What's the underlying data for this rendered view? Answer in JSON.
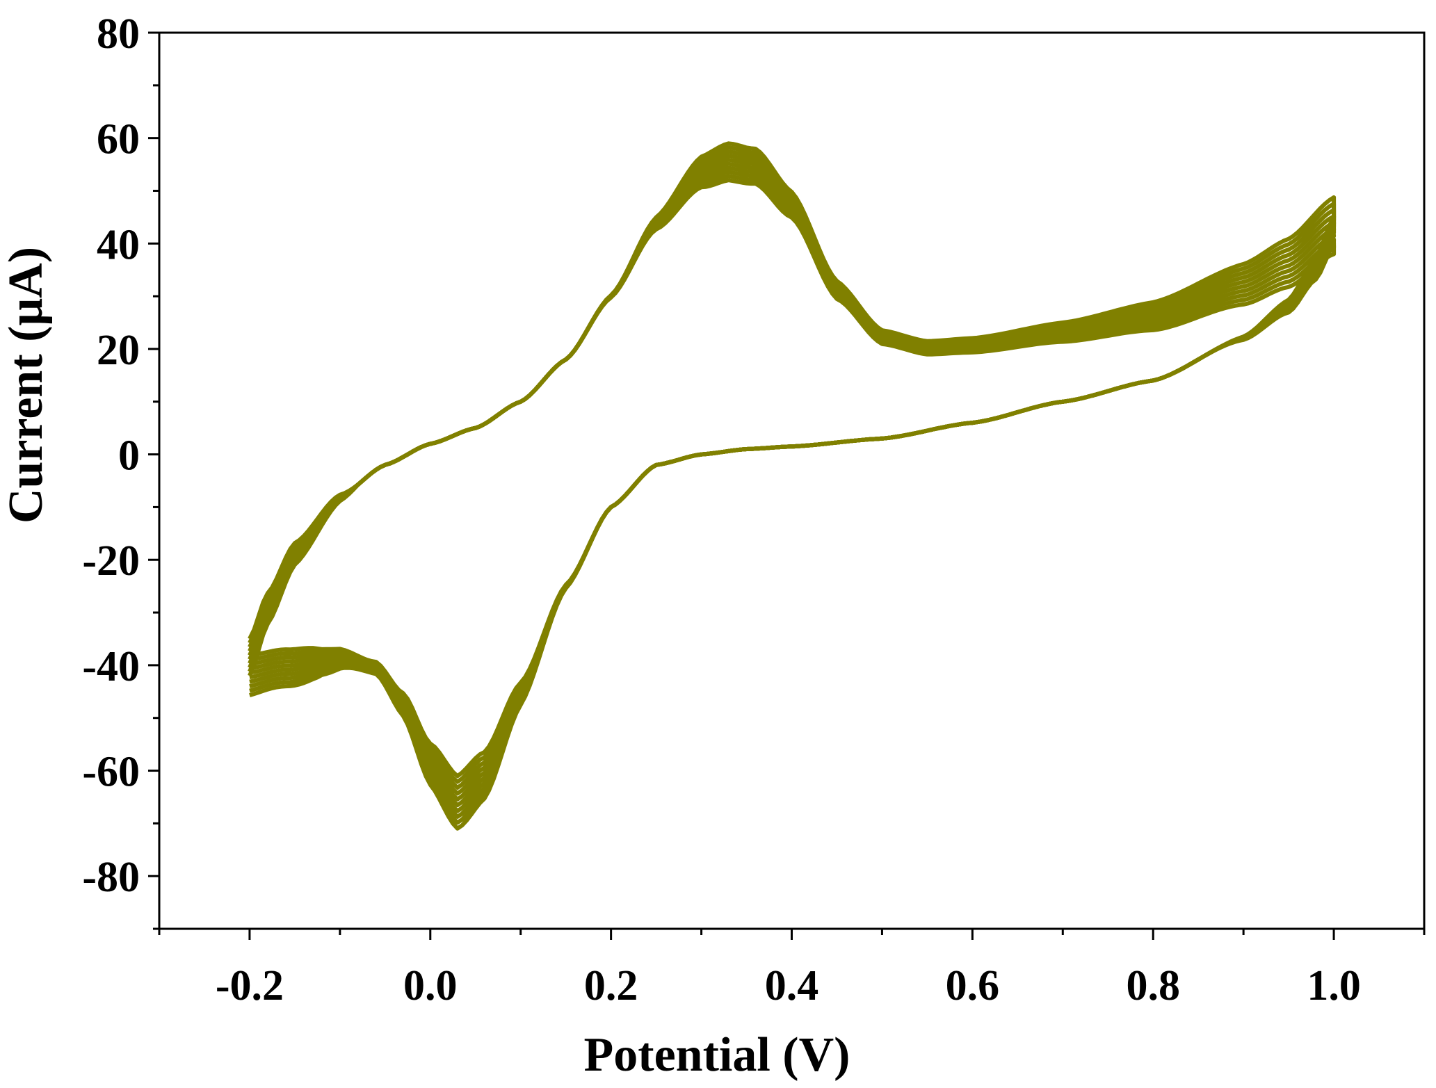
{
  "chart_data": {
    "type": "line",
    "title": "",
    "xlabel": "Potential (V)",
    "ylabel": "Current (μA)",
    "xlim": [
      -0.3,
      1.1
    ],
    "ylim": [
      -90,
      80
    ],
    "xticks": [
      -0.2,
      0.0,
      0.2,
      0.4,
      0.6,
      0.8,
      1.0
    ],
    "xtick_labels": [
      "-0.2",
      "0.0",
      "0.2",
      "0.4",
      "0.6",
      "0.8",
      "1.0"
    ],
    "yticks": [
      80,
      60,
      40,
      20,
      0,
      -20,
      -40,
      -60,
      -80
    ],
    "ytick_labels": [
      "80",
      "60",
      "40",
      "20",
      "0",
      "-20",
      "-40",
      "-60",
      "-80"
    ],
    "grid": false,
    "line_color": "#808000",
    "series_count": 10,
    "base_cycle": {
      "anodic_sweep": {
        "potential": [
          -0.2,
          -0.18,
          -0.15,
          -0.1,
          -0.05,
          0.0,
          0.05,
          0.1,
          0.15,
          0.2,
          0.25,
          0.3,
          0.33,
          0.36,
          0.4,
          0.45,
          0.5,
          0.55,
          0.6,
          0.7,
          0.8,
          0.9,
          0.95,
          1.0
        ],
        "current": [
          -37,
          -28,
          -18,
          -8,
          -2,
          2,
          5,
          10,
          18,
          30,
          44,
          54,
          56,
          55,
          47,
          30,
          21,
          19,
          19.5,
          22,
          25,
          31,
          35,
          42
        ]
      },
      "cathodic_sweep": {
        "potential": [
          1.0,
          0.98,
          0.95,
          0.9,
          0.8,
          0.7,
          0.6,
          0.5,
          0.4,
          0.35,
          0.3,
          0.25,
          0.2,
          0.15,
          0.1,
          0.06,
          0.03,
          0.0,
          -0.03,
          -0.06,
          -0.1,
          -0.13,
          -0.16,
          -0.2
        ],
        "current": [
          42,
          35,
          28,
          22,
          14,
          10,
          6,
          3,
          1.5,
          1,
          0,
          -2,
          -10,
          -25,
          -45,
          -60,
          -65,
          -58,
          -47,
          -40,
          -37,
          -37,
          -38,
          -40
        ]
      }
    },
    "cycle_variation": {
      "oxidation_peak_current_range": [
        52,
        59
      ],
      "reduction_peak_current_range": [
        -61,
        -71
      ],
      "start_current_range": [
        -35,
        -42
      ],
      "end_current_range": [
        38,
        47
      ]
    }
  }
}
